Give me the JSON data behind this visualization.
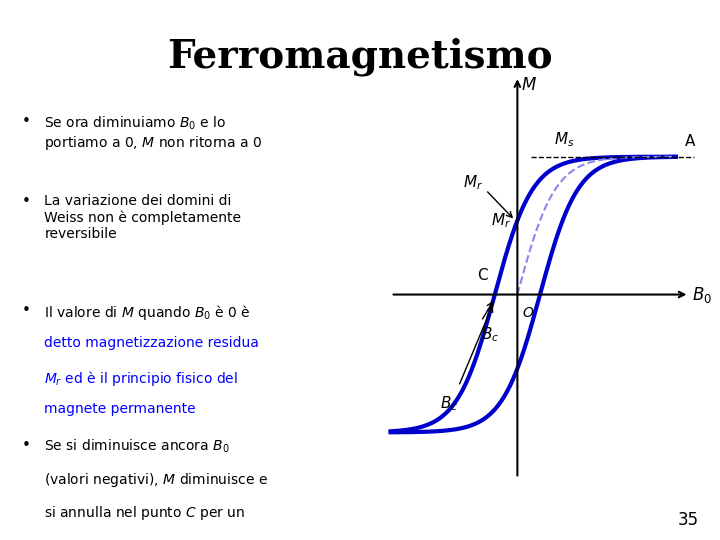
{
  "title": "Ferromagnetismo",
  "title_fontsize": 28,
  "title_font": "serif",
  "background_color": "#ffffff",
  "text_color": "#000000",
  "blue_color": "#0000cc",
  "link_color": "#0000ff",
  "hysteresis_color": "#0000cc",
  "initial_curve_color": "#6699ff",
  "bullet_points": [
    "Se ora diminuiamo $B_0$ e lo\nportiamo a 0, $M$ non ritorna a 0",
    "La variazione dei domini di\nWeiss non è completamente\nreversibile",
    "Il valore di $M$ quando $B_0$ è 0 è\ndetto magnetizzazione residua\n$M_r$ ed è il principio fisico del\nmagnete permanente",
    "Se si diminuisce ancora $B_0$\n(valori negativi), $M$ diminuisce e\nsi annulla nel punto $C$ per un\nvalore del campo $B_c$ detto\ncampo di coercizione"
  ],
  "slide_number": "35"
}
